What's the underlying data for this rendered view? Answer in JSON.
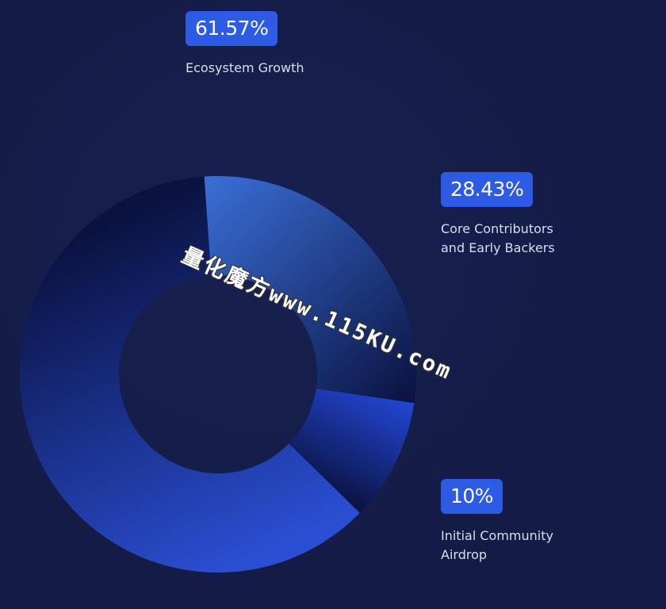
{
  "chart_data": {
    "type": "donut",
    "categories": [
      "Core Contributors and Early Backers",
      "Initial Community Airdrop",
      "Ecosystem Growth"
    ],
    "values": [
      28.43,
      10,
      61.57
    ],
    "value_labels": [
      "28.43%",
      "10%",
      "61.57%"
    ],
    "colors": [
      "#3a6fd8",
      "#2347d6",
      "#2b4fd4"
    ]
  },
  "watermark": "量化魔方www.115KU.com"
}
